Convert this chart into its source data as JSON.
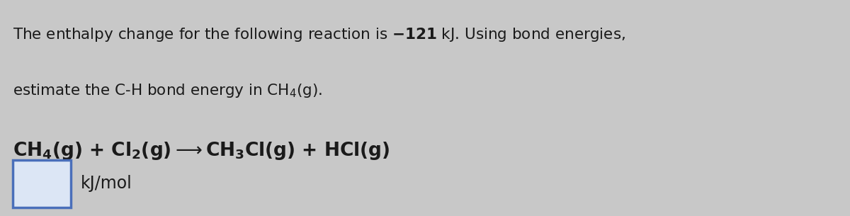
{
  "background_color": "#c8c8c8",
  "text_color": "#1a1a1a",
  "font_size_text": 15.5,
  "font_size_reaction": 19,
  "font_size_input": 17,
  "box_edge_color": "#4a6fba",
  "box_face_color": "#dce6f5"
}
